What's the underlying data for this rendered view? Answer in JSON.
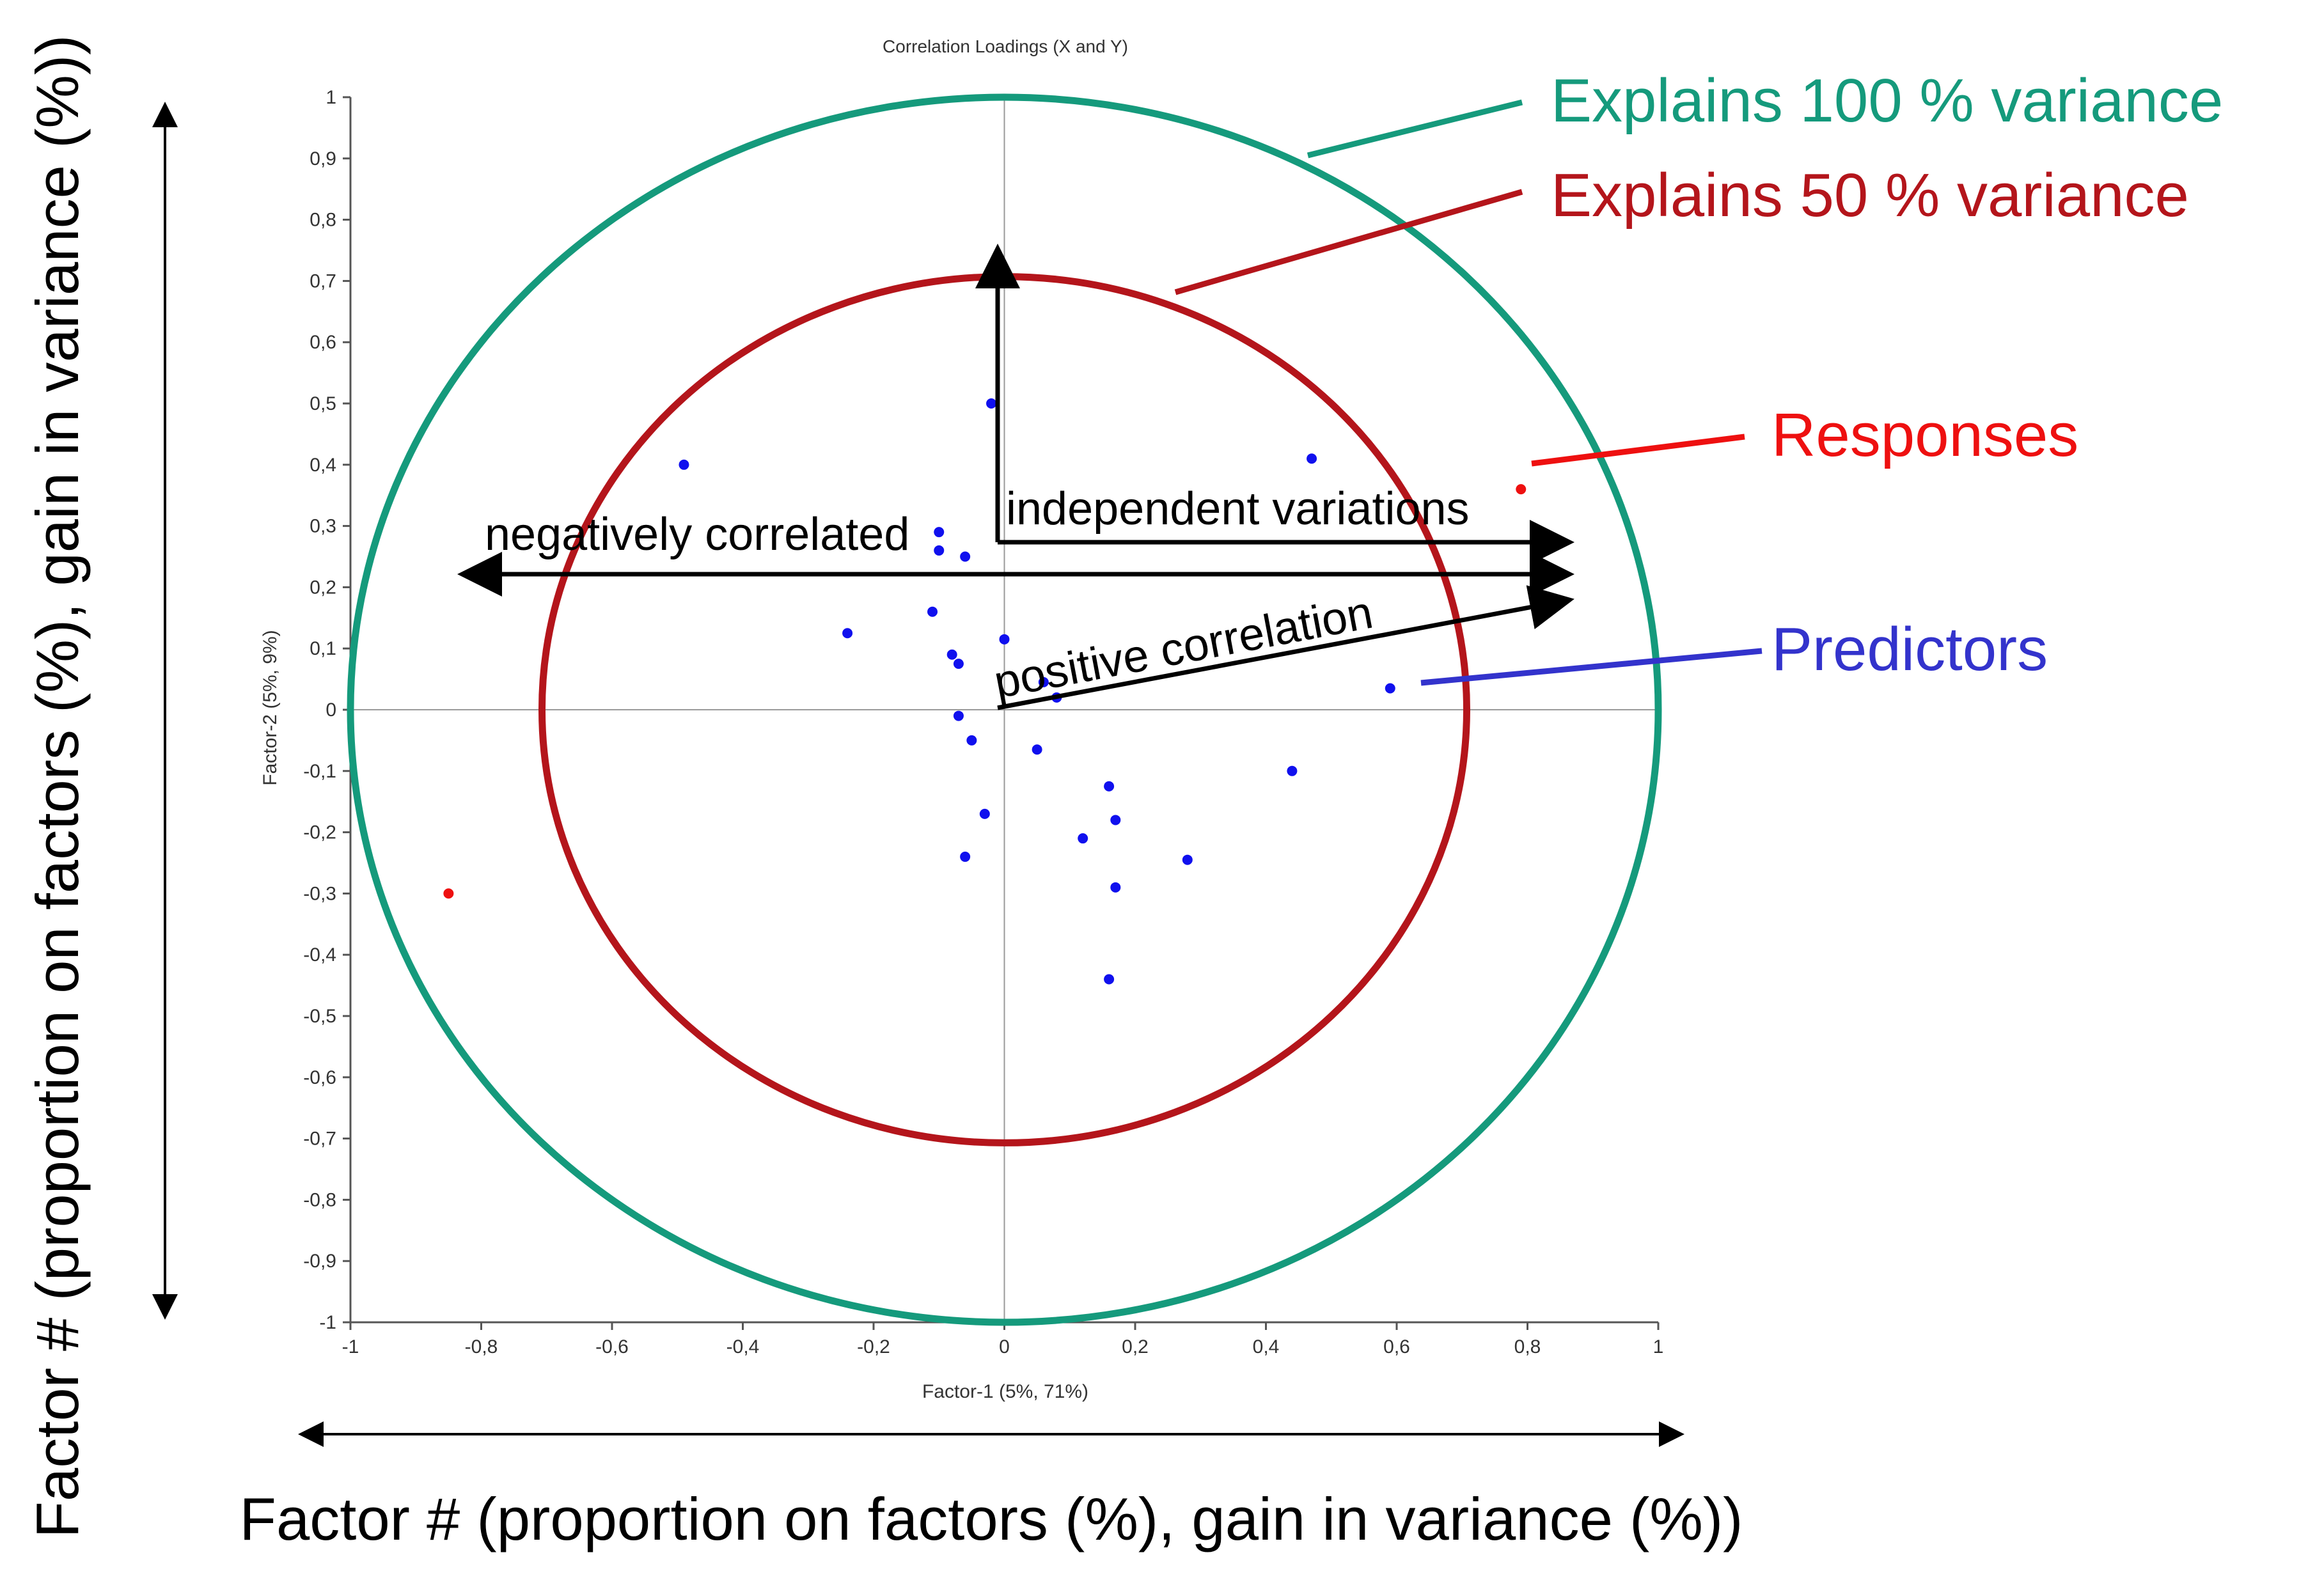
{
  "chart_data": {
    "type": "scatter",
    "title": "Correlation Loadings (X and Y)",
    "xlabel": "Factor-1 (5%, 71%)",
    "ylabel": "Factor-2 (5%, 9%)",
    "xlim": [
      -1,
      1
    ],
    "ylim": [
      -1,
      1
    ],
    "x_ticks": [
      "-1",
      "-0,8",
      "-0,6",
      "-0,4",
      "-0,2",
      "0",
      "0,2",
      "0,4",
      "0,6",
      "0,8",
      "1"
    ],
    "y_ticks": [
      "1",
      "0,9",
      "0,8",
      "0,7",
      "0,6",
      "0,5",
      "0,4",
      "0,3",
      "0,2",
      "0,1",
      "0",
      "-0,1",
      "-0,2",
      "-0,3",
      "-0,4",
      "-0,5",
      "-0,6",
      "-0,7",
      "-0,8",
      "-0,9",
      "-1"
    ],
    "circles": [
      {
        "name": "Explains 100 % variance",
        "radius": 1.0,
        "color": "#159a7c"
      },
      {
        "name": "Explains 50 % variance",
        "radius": 0.7071,
        "color": "#b4151b"
      }
    ],
    "series": [
      {
        "name": "Predictors",
        "color": "#1010ee",
        "points": [
          [
            -0.49,
            0.4
          ],
          [
            -0.02,
            0.5
          ],
          [
            0.47,
            0.41
          ],
          [
            -0.1,
            0.29
          ],
          [
            -0.1,
            0.26
          ],
          [
            -0.06,
            0.25
          ],
          [
            -0.11,
            0.16
          ],
          [
            -0.24,
            0.125
          ],
          [
            0.0,
            0.115
          ],
          [
            -0.08,
            0.09
          ],
          [
            -0.07,
            0.075
          ],
          [
            0.06,
            0.045
          ],
          [
            0.08,
            0.02
          ],
          [
            0.59,
            0.035
          ],
          [
            -0.07,
            -0.01
          ],
          [
            -0.05,
            -0.05
          ],
          [
            0.05,
            -0.065
          ],
          [
            0.44,
            -0.1
          ],
          [
            0.16,
            -0.125
          ],
          [
            -0.03,
            -0.17
          ],
          [
            0.17,
            -0.18
          ],
          [
            0.12,
            -0.21
          ],
          [
            -0.06,
            -0.24
          ],
          [
            0.28,
            -0.245
          ],
          [
            0.17,
            -0.29
          ],
          [
            0.16,
            -0.44
          ]
        ]
      },
      {
        "name": "Responses",
        "color": "#ee1010",
        "points": [
          [
            -0.85,
            -0.3
          ],
          [
            0.79,
            0.36
          ]
        ]
      }
    ],
    "annotations": {
      "explains_100": "Explains 100 % variance",
      "explains_50": "Explains 50 % variance",
      "responses": "Responses",
      "predictors": "Predictors",
      "negatively_correlated": "negatively correlated",
      "independent_variations": "independent variations",
      "positive_correlation": "positive correlation",
      "outer_x_axis": "Factor # (proportion on factors (%), gain in variance (%))",
      "outer_y_axis": "Factor # (proportion on factors (%), gain in variance (%))"
    }
  }
}
